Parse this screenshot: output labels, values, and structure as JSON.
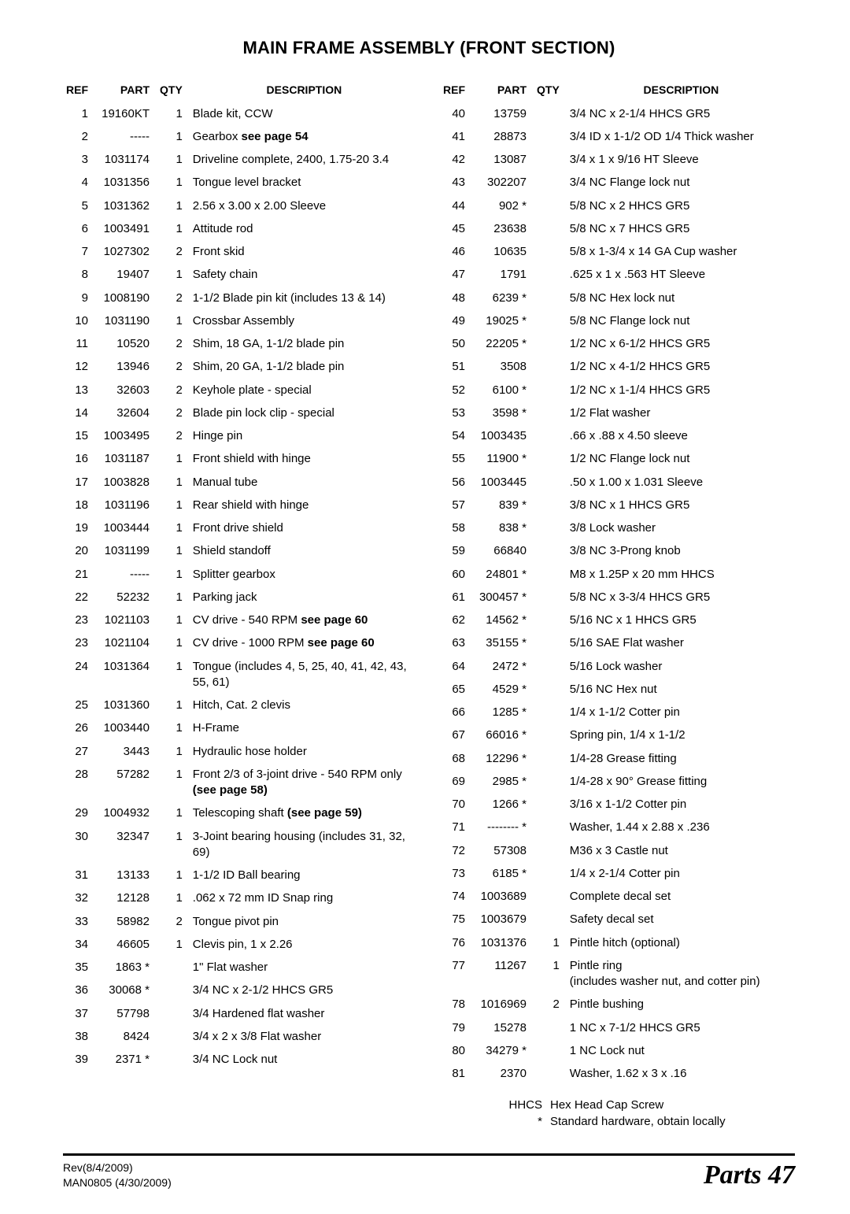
{
  "title": "MAIN FRAME ASSEMBLY (FRONT SECTION)",
  "headers": {
    "ref": "REF",
    "part": "PART",
    "qty": "QTY",
    "desc": "DESCRIPTION"
  },
  "left_rows": [
    {
      "ref": "1",
      "part": "19160KT",
      "qty": "1",
      "desc": "Blade kit, CCW"
    },
    {
      "ref": "2",
      "part": "-----",
      "qty": "1",
      "desc": "Gearbox <b>see page 54</b>"
    },
    {
      "ref": "3",
      "part": "1031174",
      "qty": "1",
      "desc": "Driveline complete, 2400, 1.75-20 3.4"
    },
    {
      "ref": "4",
      "part": "1031356",
      "qty": "1",
      "desc": "Tongue level bracket"
    },
    {
      "ref": "5",
      "part": "1031362",
      "qty": "1",
      "desc": "2.56 x 3.00 x 2.00 Sleeve"
    },
    {
      "ref": "6",
      "part": "1003491",
      "qty": "1",
      "desc": "Attitude rod"
    },
    {
      "ref": "7",
      "part": "1027302",
      "qty": "2",
      "desc": "Front skid"
    },
    {
      "ref": "8",
      "part": "19407",
      "qty": "1",
      "desc": "Safety chain"
    },
    {
      "ref": "9",
      "part": "1008190",
      "qty": "2",
      "desc": "1-1/2 Blade pin kit (includes 13 & 14)"
    },
    {
      "ref": "10",
      "part": "1031190",
      "qty": "1",
      "desc": "Crossbar Assembly"
    },
    {
      "ref": "11",
      "part": "10520",
      "qty": "2",
      "desc": "Shim, 18 GA, 1-1/2 blade pin"
    },
    {
      "ref": "12",
      "part": "13946",
      "qty": "2",
      "desc": "Shim, 20 GA, 1-1/2 blade pin"
    },
    {
      "ref": "13",
      "part": "32603",
      "qty": "2",
      "desc": "Keyhole plate - special"
    },
    {
      "ref": "14",
      "part": "32604",
      "qty": "2",
      "desc": "Blade pin lock clip - special"
    },
    {
      "ref": "15",
      "part": "1003495",
      "qty": "2",
      "desc": "Hinge pin"
    },
    {
      "ref": "16",
      "part": "1031187",
      "qty": "1",
      "desc": "Front shield with hinge"
    },
    {
      "ref": "17",
      "part": "1003828",
      "qty": "1",
      "desc": "Manual tube"
    },
    {
      "ref": "18",
      "part": "1031196",
      "qty": "1",
      "desc": "Rear shield with hinge"
    },
    {
      "ref": "19",
      "part": "1003444",
      "qty": "1",
      "desc": "Front drive shield"
    },
    {
      "ref": "20",
      "part": "1031199",
      "qty": "1",
      "desc": "Shield standoff"
    },
    {
      "ref": "21",
      "part": "-----",
      "qty": "1",
      "desc": "Splitter gearbox"
    },
    {
      "ref": "22",
      "part": "52232",
      "qty": "1",
      "desc": "Parking jack"
    },
    {
      "ref": "23",
      "part": "1021103",
      "qty": "1",
      "desc": "CV drive - 540 RPM <b>see page 60</b>"
    },
    {
      "ref": "23",
      "part": "1021104",
      "qty": "1",
      "desc": "CV drive - 1000 RPM <b>see page 60</b>"
    },
    {
      "ref": "24",
      "part": "1031364",
      "qty": "1",
      "desc": "Tongue (includes 4, 5, 25, 40, 41, 42, 43, 55, 61)"
    },
    {
      "ref": "25",
      "part": "1031360",
      "qty": "1",
      "desc": "Hitch, Cat. 2 clevis"
    },
    {
      "ref": "26",
      "part": "1003440",
      "qty": "1",
      "desc": "H-Frame"
    },
    {
      "ref": "27",
      "part": "3443",
      "qty": "1",
      "desc": "Hydraulic hose holder"
    },
    {
      "ref": "28",
      "part": "57282",
      "qty": "1",
      "desc": "Front 2/3 of 3-joint drive - 540 RPM only <b>(see page 58)</b>"
    },
    {
      "ref": "29",
      "part": "1004932",
      "qty": "1",
      "desc": "Telescoping shaft <b>(see page 59)</b>"
    },
    {
      "ref": "30",
      "part": "32347",
      "qty": "1",
      "desc": "3-Joint bearing housing (includes 31, 32, 69)"
    },
    {
      "ref": "31",
      "part": "13133",
      "qty": "1",
      "desc": "1-1/2 ID Ball bearing"
    },
    {
      "ref": "32",
      "part": "12128",
      "qty": "1",
      "desc": ".062 x 72 mm ID Snap ring"
    },
    {
      "ref": "33",
      "part": "58982",
      "qty": "2",
      "desc": "Tongue pivot pin"
    },
    {
      "ref": "34",
      "part": "46605",
      "qty": "1",
      "desc": "Clevis pin, 1 x 2.26"
    },
    {
      "ref": "35",
      "part": "1863 *",
      "qty": "",
      "desc": "1\" Flat washer"
    },
    {
      "ref": "36",
      "part": "30068 *",
      "qty": "",
      "desc": "3/4 NC x 2-1/2 HHCS GR5"
    },
    {
      "ref": "37",
      "part": "57798",
      "qty": "",
      "desc": "3/4 Hardened flat washer"
    },
    {
      "ref": "38",
      "part": "8424",
      "qty": "",
      "desc": "3/4 x 2 x 3/8 Flat washer"
    },
    {
      "ref": "39",
      "part": "2371 *",
      "qty": "",
      "desc": "3/4 NC Lock nut"
    }
  ],
  "right_rows": [
    {
      "ref": "40",
      "part": "13759",
      "qty": "",
      "desc": "3/4 NC x 2-1/4 HHCS GR5"
    },
    {
      "ref": "41",
      "part": "28873",
      "qty": "",
      "desc": "3/4 ID x 1-1/2 OD 1/4 Thick washer"
    },
    {
      "ref": "42",
      "part": "13087",
      "qty": "",
      "desc": "3/4 x 1 x 9/16 HT Sleeve"
    },
    {
      "ref": "43",
      "part": "302207",
      "qty": "",
      "desc": "3/4 NC Flange lock nut"
    },
    {
      "ref": "44",
      "part": "902 *",
      "qty": "",
      "desc": "5/8 NC x 2 HHCS GR5"
    },
    {
      "ref": "45",
      "part": "23638",
      "qty": "",
      "desc": "5/8 NC x 7 HHCS GR5"
    },
    {
      "ref": "46",
      "part": "10635",
      "qty": "",
      "desc": "5/8 x 1-3/4 x 14 GA Cup washer"
    },
    {
      "ref": "47",
      "part": "1791",
      "qty": "",
      "desc": ".625 x 1 x .563 HT Sleeve"
    },
    {
      "ref": "48",
      "part": "6239 *",
      "qty": "",
      "desc": "5/8 NC Hex lock nut"
    },
    {
      "ref": "49",
      "part": "19025 *",
      "qty": "",
      "desc": "5/8 NC Flange lock nut"
    },
    {
      "ref": "50",
      "part": "22205 *",
      "qty": "",
      "desc": "1/2 NC x 6-1/2 HHCS GR5"
    },
    {
      "ref": "51",
      "part": "3508",
      "qty": "",
      "desc": "1/2 NC x 4-1/2 HHCS GR5"
    },
    {
      "ref": "52",
      "part": "6100 *",
      "qty": "",
      "desc": "1/2 NC x 1-1/4 HHCS GR5"
    },
    {
      "ref": "53",
      "part": "3598 *",
      "qty": "",
      "desc": "1/2 Flat washer"
    },
    {
      "ref": "54",
      "part": "1003435",
      "qty": "",
      "desc": ".66 x .88 x 4.50 sleeve"
    },
    {
      "ref": "55",
      "part": "11900 *",
      "qty": "",
      "desc": "1/2 NC Flange lock nut"
    },
    {
      "ref": "56",
      "part": "1003445",
      "qty": "",
      "desc": ".50 x 1.00 x 1.031 Sleeve"
    },
    {
      "ref": "57",
      "part": "839 *",
      "qty": "",
      "desc": "3/8 NC x 1 HHCS GR5"
    },
    {
      "ref": "58",
      "part": "838 *",
      "qty": "",
      "desc": "3/8 Lock washer"
    },
    {
      "ref": "59",
      "part": "66840",
      "qty": "",
      "desc": "3/8 NC 3-Prong knob"
    },
    {
      "ref": "60",
      "part": "24801 *",
      "qty": "",
      "desc": "M8 x 1.25P x 20 mm HHCS"
    },
    {
      "ref": "61",
      "part": "300457 *",
      "qty": "",
      "desc": "5/8 NC x 3-3/4 HHCS GR5"
    },
    {
      "ref": "62",
      "part": "14562 *",
      "qty": "",
      "desc": "5/16 NC x 1 HHCS GR5"
    },
    {
      "ref": "63",
      "part": "35155 *",
      "qty": "",
      "desc": "5/16 SAE Flat washer"
    },
    {
      "ref": "64",
      "part": "2472 *",
      "qty": "",
      "desc": "5/16 Lock washer"
    },
    {
      "ref": "65",
      "part": "4529 *",
      "qty": "",
      "desc": "5/16 NC Hex nut"
    },
    {
      "ref": "66",
      "part": "1285 *",
      "qty": "",
      "desc": "1/4 x 1-1/2 Cotter pin"
    },
    {
      "ref": "67",
      "part": "66016 *",
      "qty": "",
      "desc": "Spring pin, 1/4 x 1-1/2"
    },
    {
      "ref": "68",
      "part": "12296 *",
      "qty": "",
      "desc": "1/4-28 Grease fitting"
    },
    {
      "ref": "69",
      "part": "2985 *",
      "qty": "",
      "desc": "1/4-28 x 90° Grease fitting"
    },
    {
      "ref": "70",
      "part": "1266 *",
      "qty": "",
      "desc": "3/16 x 1-1/2 Cotter pin"
    },
    {
      "ref": "71",
      "part": "-------- *",
      "qty": "",
      "desc": "Washer, 1.44 x 2.88 x .236"
    },
    {
      "ref": "72",
      "part": "57308",
      "qty": "",
      "desc": "M36 x 3 Castle nut"
    },
    {
      "ref": "73",
      "part": "6185 *",
      "qty": "",
      "desc": "1/4 x 2-1/4 Cotter pin"
    },
    {
      "ref": "74",
      "part": "1003689",
      "qty": "",
      "desc": "Complete decal set"
    },
    {
      "ref": "75",
      "part": "1003679",
      "qty": "",
      "desc": "Safety decal set"
    },
    {
      "ref": "76",
      "part": "1031376",
      "qty": "1",
      "desc": "Pintle hitch (optional)"
    },
    {
      "ref": "77",
      "part": "11267",
      "qty": "1",
      "desc": "Pintle ring<br>(includes washer nut, and cotter pin)"
    },
    {
      "ref": "78",
      "part": "1016969",
      "qty": "2",
      "desc": "Pintle bushing"
    },
    {
      "ref": "79",
      "part": "15278",
      "qty": "",
      "desc": "1 NC x 7-1/2 HHCS GR5"
    },
    {
      "ref": "80",
      "part": "34279 *",
      "qty": "",
      "desc": "1 NC Lock nut"
    },
    {
      "ref": "81",
      "part": "2370",
      "qty": "",
      "desc": "Washer, 1.62 x 3 x .16"
    }
  ],
  "legend": [
    {
      "key": "HHCS",
      "val": "Hex Head Cap Screw"
    },
    {
      "key": "*",
      "val": "Standard hardware, obtain locally"
    }
  ],
  "footer": {
    "rev": "Rev(8/4/2009)",
    "doc": "MAN0805  (4/30/2009)",
    "section": "Parts",
    "page": "47"
  }
}
